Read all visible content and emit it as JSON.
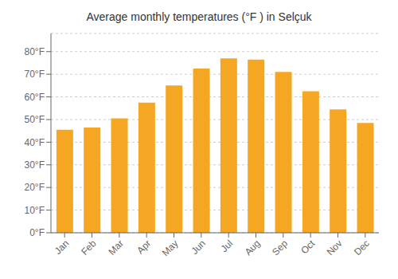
{
  "chart_data": {
    "type": "bar",
    "title": "Average monthly temperatures (°F ) in Selçuk",
    "categories": [
      "Jan",
      "Feb",
      "Mar",
      "Apr",
      "May",
      "Jun",
      "Jul",
      "Aug",
      "Sep",
      "Oct",
      "Nov",
      "Dec"
    ],
    "values": [
      45.5,
      46.5,
      50.5,
      57.5,
      65.0,
      72.5,
      77.0,
      76.5,
      71.0,
      62.5,
      54.5,
      48.5
    ],
    "color": "#F5A623",
    "ylim": [
      0,
      88
    ],
    "yticks": [
      {
        "value": 0,
        "label": "0°F"
      },
      {
        "value": 10,
        "label": "10°F"
      },
      {
        "value": 20,
        "label": "20°F"
      },
      {
        "value": 30,
        "label": "30°F"
      },
      {
        "value": 40,
        "label": "40°F"
      },
      {
        "value": 50,
        "label": "50°F"
      },
      {
        "value": 60,
        "label": "60°F"
      },
      {
        "value": 70,
        "label": "70°F"
      },
      {
        "value": 80,
        "label": "80°F"
      }
    ],
    "grid": true
  }
}
